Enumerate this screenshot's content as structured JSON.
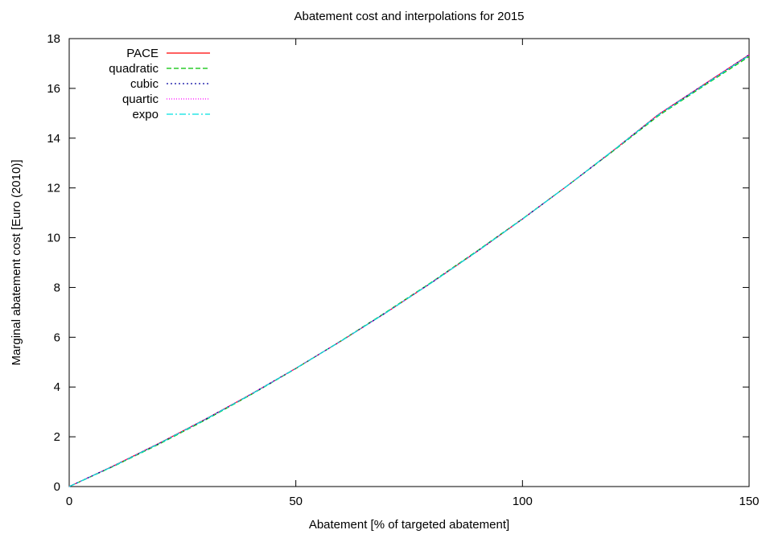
{
  "chart_data": {
    "type": "line",
    "title": "Abatement cost and interpolations for 2015",
    "xlabel": "Abatement [% of targeted abatement]",
    "ylabel": "Marginal abatement cost [Euro (2010)]",
    "xlim": [
      0,
      150
    ],
    "ylim": [
      0,
      18
    ],
    "xticks": [
      0,
      50,
      100,
      150
    ],
    "yticks": [
      0,
      2,
      4,
      6,
      8,
      10,
      12,
      14,
      16,
      18
    ],
    "grid": false,
    "legend_position": "top-left",
    "x": [
      0,
      10,
      20,
      30,
      40,
      50,
      60,
      70,
      80,
      90,
      100,
      110,
      120,
      130,
      140,
      150
    ],
    "series": [
      {
        "name": "PACE",
        "color": "#ff0000",
        "dash": "solid",
        "values": [
          0,
          0.85,
          1.75,
          2.7,
          3.7,
          4.75,
          5.85,
          7.0,
          8.2,
          9.45,
          10.75,
          12.1,
          13.5,
          14.95,
          16.15,
          17.35
        ]
      },
      {
        "name": "quadratic",
        "color": "#00c000",
        "dash": "dashed",
        "values": [
          0,
          0.83,
          1.72,
          2.67,
          3.68,
          4.74,
          5.86,
          7.02,
          8.22,
          9.47,
          10.76,
          12.1,
          13.48,
          14.9,
          16.1,
          17.28
        ]
      },
      {
        "name": "cubic",
        "color": "#0000a0",
        "dash": "dotted",
        "values": [
          0,
          0.85,
          1.75,
          2.7,
          3.7,
          4.75,
          5.85,
          7.0,
          8.2,
          9.45,
          10.75,
          12.1,
          13.5,
          14.95,
          16.15,
          17.35
        ]
      },
      {
        "name": "quartic",
        "color": "#ff00ff",
        "dash": "fine-dotted",
        "values": [
          0,
          0.85,
          1.75,
          2.7,
          3.7,
          4.75,
          5.85,
          7.0,
          8.2,
          9.45,
          10.75,
          12.1,
          13.5,
          14.95,
          16.15,
          17.35
        ]
      },
      {
        "name": "expo",
        "color": "#00e0e0",
        "dash": "dash-dot",
        "values": [
          0,
          0.84,
          1.74,
          2.69,
          3.69,
          4.75,
          5.85,
          7.0,
          8.2,
          9.45,
          10.75,
          12.1,
          13.5,
          14.93,
          16.13,
          17.32
        ]
      }
    ]
  }
}
